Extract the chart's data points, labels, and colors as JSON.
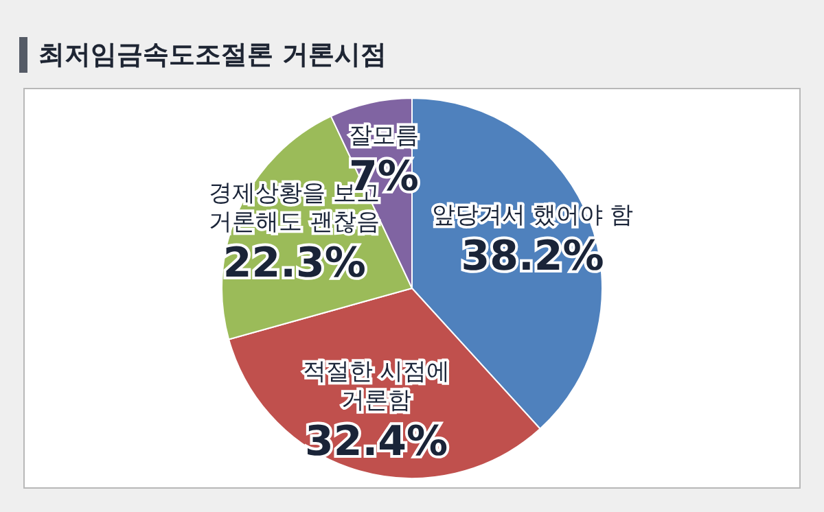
{
  "chart_data": {
    "type": "pie",
    "title": "최저임금속도조절론 거론시점",
    "categories": [
      "앞당겨서 했어야 함",
      "적절한 시점에 거론함",
      "경제상황을 보고 거론해도 괜찮음",
      "잘모름"
    ],
    "values": [
      38.2,
      32.4,
      22.3,
      7
    ],
    "colors": [
      "#4f81bd",
      "#c0504d",
      "#9bbb59",
      "#8064a2"
    ],
    "value_labels": [
      "38.2%",
      "32.4%",
      "22.3%",
      "7%"
    ],
    "legend": false
  }
}
